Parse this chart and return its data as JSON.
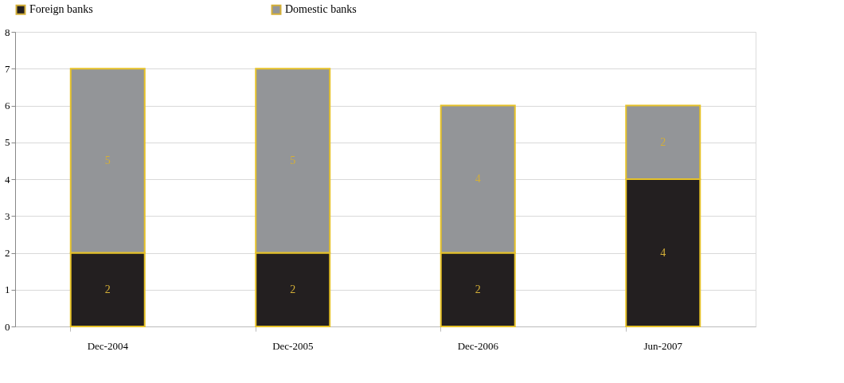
{
  "chart_data": {
    "type": "bar",
    "stacked": true,
    "categories": [
      "Dec-2004",
      "Dec-2005",
      "Dec-2006",
      "Jun-2007"
    ],
    "series": [
      {
        "name": "Foreign banks",
        "color": "#231f20",
        "values": [
          2,
          2,
          2,
          4
        ]
      },
      {
        "name": "Domestic banks",
        "color": "#939598",
        "values": [
          5,
          5,
          4,
          2
        ]
      }
    ],
    "ylim": [
      0,
      8
    ],
    "yticks": [
      0,
      1,
      2,
      3,
      4,
      5,
      6,
      7,
      8
    ],
    "grid": "y",
    "legend": "top",
    "data_labels": true
  }
}
